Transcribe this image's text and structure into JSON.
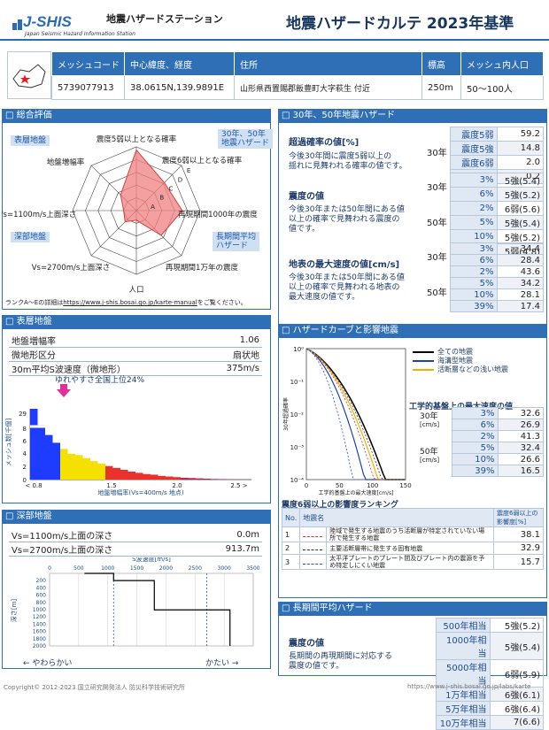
{
  "header": {
    "logo_text": "J-SHIS",
    "logo_sub": "Japan Seismic Hazard Information Station",
    "station": "地震ハザードステーション",
    "title": "地震ハザードカルテ 2023年基準"
  },
  "mesh": {
    "headers": [
      "メッシュコード",
      "中心緯度、経度",
      "住所",
      "標高",
      "メッシュ内人口"
    ],
    "values": [
      "5739077913",
      "38.0615N,139.9891E",
      "山形県西置賜郡飯豊町大字萩生 付近",
      "250m",
      "50～100人"
    ]
  },
  "overall": {
    "title": "総合評価",
    "tag_surface": "表層地盤",
    "tag_deep": "深部地盤",
    "tag_3050": "30年、50年\n地震ハザード",
    "tag_long": "長期間平均\nハザード",
    "axes": [
      "震度5弱以上となる確率",
      "震度6弱以上となる確率",
      "再現期間1000年の震度",
      "再現期間1万年の震度",
      "人口",
      "Vs=2700m/s上面深さ",
      "Vs=1100m/s上面深さ",
      "地盤増幅率"
    ],
    "ranks": [
      "A",
      "B",
      "C",
      "D",
      "E"
    ],
    "note_pre": "ランクA～Eの詳細は",
    "note_link": "https://www.j-shis.bosai.go.jp/karte-manual",
    "note_post": "をご覧ください。",
    "radar_values": [
      0.95,
      0.62,
      0.72,
      0.55,
      0.15,
      0.25,
      0.2,
      0.35
    ]
  },
  "hazard3050": {
    "title": "30年、50年地震ハザード",
    "exceed": {
      "title": "超過確率の値[%]",
      "desc": "今後30年間に見舞われる確率の値です。",
      "desc1": "今後30年間に震度5弱以上の",
      "desc2": "揺れに見舞われる確率の値です。",
      "period": "30年",
      "rows": [
        [
          "震度5弱",
          "59.2"
        ],
        [
          "震度5強",
          "14.8"
        ],
        [
          "震度6弱",
          "2.0"
        ],
        [
          "震度6強",
          "0.2"
        ]
      ]
    },
    "intensity": {
      "title": "震度の値",
      "desc1": "今後30年または50年間にある値",
      "desc2": "以上の確率で見舞われる震度の",
      "desc3": "値です。",
      "rows30": [
        [
          "3%",
          "5強(5.4)"
        ],
        [
          "6%",
          "5強(5.2)"
        ]
      ],
      "rows50": [
        [
          "2%",
          "6弱(5.6)"
        ],
        [
          "5%",
          "5強(5.4)"
        ],
        [
          "10%",
          "5強(5.2)"
        ],
        [
          "39%",
          "5弱(4.8)"
        ]
      ],
      "p30": "30年",
      "p50": "50年"
    },
    "velocity": {
      "title": "地表の最大速度の値[cm/s]",
      "desc1": "今後30年または50年間にある値",
      "desc2": "以上の確率で見舞われる地表の",
      "desc3": "最大速度の値です。",
      "rows30": [
        [
          "3%",
          "34.4"
        ],
        [
          "6%",
          "28.4"
        ]
      ],
      "rows50": [
        [
          "2%",
          "43.6"
        ],
        [
          "5%",
          "34.2"
        ],
        [
          "10%",
          "28.1"
        ],
        [
          "39%",
          "17.4"
        ]
      ],
      "p30": "30年",
      "p50": "50年"
    }
  },
  "surface": {
    "title": "表層地盤",
    "rows": [
      [
        "地盤増幅率",
        "1.06"
      ],
      [
        "微地形区分",
        "扇状地"
      ],
      [
        "30m平均S波速度（微地形）",
        "375m/s"
      ]
    ],
    "hist_caption": "ゆれやすさ全国上位24%",
    "hist_xlabel": "地盤増幅率(Vs=400m/s 地点)",
    "hist_ylabel": "メッシュ数[千個]",
    "hist_xticks": [
      "< 0.8",
      "1.5",
      "2.0",
      "2.5 >"
    ],
    "hist_yticks": [
      "29",
      "8",
      "6",
      "4",
      "2",
      "0"
    ]
  },
  "deep": {
    "title": "深部地盤",
    "rows": [
      [
        "Vs=1100m/s上面の深さ",
        "0.0m"
      ],
      [
        "Vs=2700m/s上面の深さ",
        "913.7m"
      ]
    ],
    "xlabel": "S波速度[m/s]",
    "ylabel": "深さ[m]",
    "xticks": [
      "0",
      "500",
      "1000",
      "1500",
      "2000",
      "2500",
      "3000",
      "3500"
    ],
    "yticks": [
      "200",
      "400",
      "600",
      "800",
      "1000",
      "1200",
      "1400",
      "1600",
      "1800",
      "2000"
    ],
    "soft": "← やわらかい",
    "hard": "かたい →"
  },
  "curve": {
    "title": "ハザードカーブと影響地震",
    "legend": [
      "全ての地震",
      "海溝型地震",
      "活断層などの浅い地震"
    ],
    "xlabel": "工学的基盤上の最大速度[cm/s]",
    "ylabel": "30年超過確率",
    "xticks": [
      "0",
      "50",
      "100",
      "150"
    ],
    "yticks": [
      "10⁰",
      "10⁻¹",
      "10⁻²",
      "10⁻³",
      "10⁻⁴"
    ],
    "table_title": "工学的基盤上の最大速度の値",
    "p30": "30年",
    "p50": "50年",
    "unit": "[cm/s]",
    "rows30": [
      [
        "3%",
        "32.6"
      ],
      [
        "6%",
        "26.9"
      ]
    ],
    "rows50": [
      [
        "2%",
        "41.3"
      ],
      [
        "5%",
        "32.4"
      ],
      [
        "10%",
        "26.6"
      ],
      [
        "39%",
        "16.5"
      ]
    ],
    "rank_title": "震度6弱以上の影響度ランキング",
    "rank_headers": [
      "No.",
      "地震名",
      "震度6弱以上の影響度[%]"
    ],
    "ranks": [
      [
        "1",
        "陸域で発生する地震のうち活断層が特定されていない場所で発生する地震",
        "38.1"
      ],
      [
        "2",
        "主要活断層帯に発生する固有地震",
        "32.9"
      ],
      [
        "3",
        "太平洋プレートのプレート間及びプレート内の震源を予め特定しにくい地震",
        "15.7"
      ]
    ]
  },
  "longterm": {
    "title": "長期間平均ハザード",
    "label": "震度の値",
    "desc1": "長期間の再現期間に対応する",
    "desc2": "震度の値です。",
    "rows": [
      [
        "500年相当",
        "5強(5.2)"
      ],
      [
        "1000年相当",
        "5強(5.4)"
      ],
      [
        "5000年相当",
        "6弱(5.9)"
      ],
      [
        "1万年相当",
        "6強(6.1)"
      ],
      [
        "5万年相当",
        "6強(6.4)"
      ],
      [
        "10万年相当",
        "7(6.6)"
      ]
    ]
  },
  "footer": {
    "copyright": "Copyright© 2012-2023 国立研究開発法人 防災科学技術研究所",
    "url": "https://www.j-shis.bosai.go.jp/labs/karte"
  },
  "colors": {
    "accent": "#2f6fb5",
    "radar": "#f08080",
    "hist": [
      "#1e3cff",
      "#f4e100",
      "#e8322b",
      "#c0224e"
    ]
  }
}
